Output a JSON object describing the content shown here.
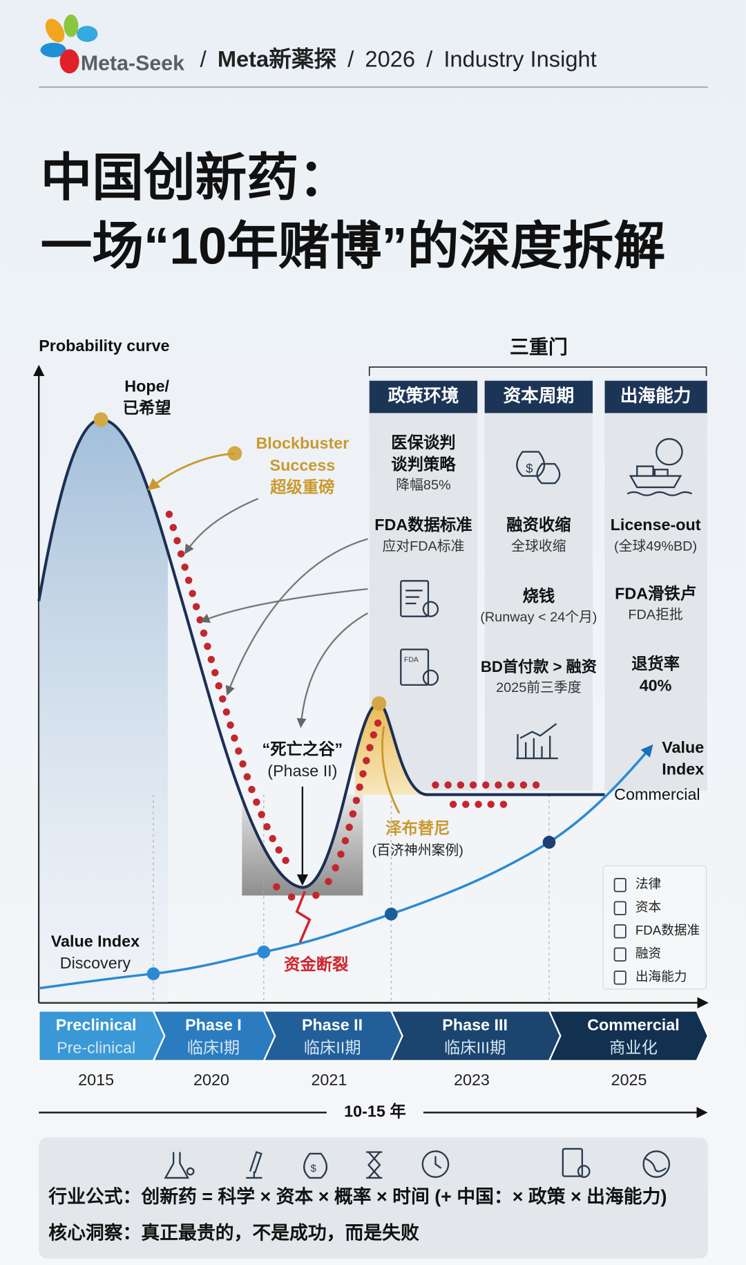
{
  "header": {
    "brand": "Meta-Seek",
    "breadcrumb": [
      "/",
      "Meta新薬探",
      "/",
      "2026",
      "/",
      "Industry Insight"
    ]
  },
  "title": [
    "中国创新药：",
    "一场“10年赌博”的深度拆解"
  ],
  "curve": {
    "y_label": "Probability curve",
    "hope": [
      "Hope/",
      "已希望"
    ],
    "blockbuster": [
      "Blockbuster",
      "Success",
      "超级重磅"
    ],
    "valley": [
      "“死亡之谷”",
      "(Phase II)"
    ],
    "funding_break": "资金断裂",
    "zanubrutinib": [
      "泽布替尼",
      "(百济神州案例)"
    ],
    "value_index_start": [
      "Value Index",
      "Discovery"
    ],
    "value_index_end": [
      "Value",
      "Index"
    ],
    "commercial": "Commercial"
  },
  "gates": {
    "title": "三重门",
    "columns": [
      {
        "header": "政策环境",
        "lines": [
          "医保谈判",
          "谈判策略",
          "降幅85%",
          "FDA数据标准",
          "应对FDA标准"
        ]
      },
      {
        "header": "资本周期",
        "lines": [
          "融资收缩",
          "全球收缩",
          "烧钱",
          "(Runway < 24个月)",
          "BD首付款 > 融资",
          "2025前三季度"
        ]
      },
      {
        "header": "出海能力",
        "lines": [
          "License-out",
          "(全球49%BD)",
          "FDA滑铁卢",
          "FDA拒批",
          "退货率",
          "40%"
        ]
      }
    ]
  },
  "legend": [
    "法律",
    "资本",
    "FDA数据准",
    "融资",
    "出海能力"
  ],
  "stages": [
    {
      "name": "Preclinical",
      "sub": "Pre-clinical",
      "year": "2015"
    },
    {
      "name": "Phase I",
      "sub": "临床I期",
      "year": "2020"
    },
    {
      "name": "Phase II",
      "sub": "临床II期",
      "year": "2021"
    },
    {
      "name": "Phase III",
      "sub": "临床III期",
      "year": "2023"
    },
    {
      "name": "Commercial",
      "sub": "商业化",
      "year": "2025"
    }
  ],
  "duration": "10-15 年",
  "summary": {
    "formula": "行业公式：创新药 = 科学 × 资本 × 概率 × 时间 (+ 中国：× 政策 × 出海能力)",
    "insight": "核心洞察：真正最贵的，不是成功，而是失败"
  }
}
